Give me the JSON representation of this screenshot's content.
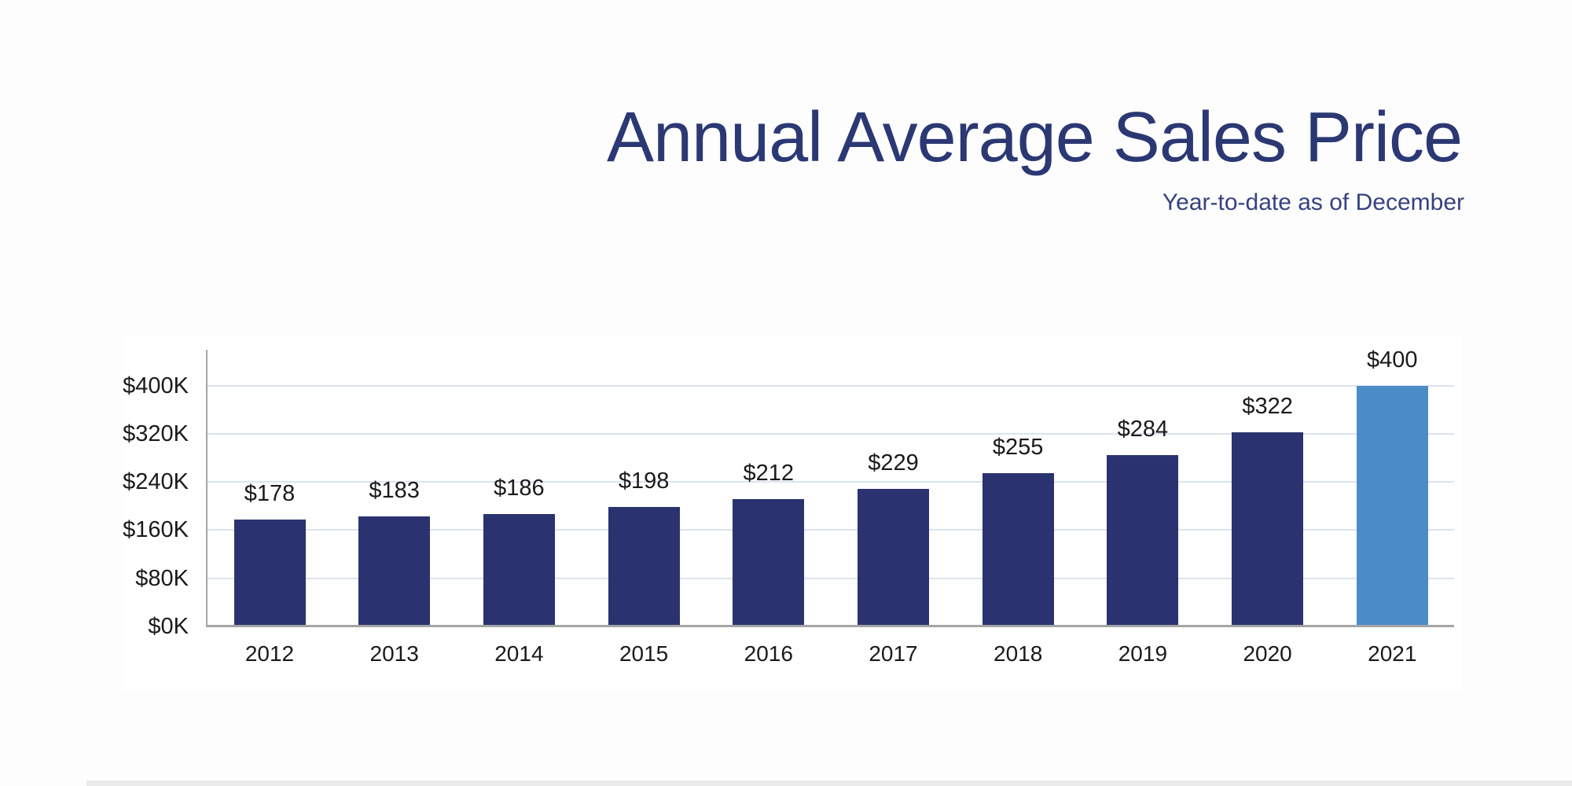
{
  "header": {
    "title": "Annual Average Sales Price",
    "subtitle": "Year-to-date as of December"
  },
  "colors": {
    "title_text": "#2b3873",
    "subtitle_text": "#36427e",
    "bar_default": "#2a336f",
    "bar_highlight": "#4b8cc8",
    "gridline": "#dce2ee",
    "axis_line": "#a5a5a5",
    "label_text": "#1a1a1a",
    "panel_background": "#ffffff",
    "page_background": "#fdfdfd"
  },
  "chart_data": {
    "type": "bar",
    "title": "Annual Average Sales Price",
    "subtitle": "Year-to-date as of December",
    "categories": [
      "2012",
      "2013",
      "2014",
      "2015",
      "2016",
      "2017",
      "2018",
      "2019",
      "2020",
      "2021"
    ],
    "values": [
      178,
      183,
      186,
      198,
      212,
      229,
      255,
      284,
      322,
      400
    ],
    "value_labels": [
      "$178",
      "$183",
      "$186",
      "$198",
      "$212",
      "$229",
      "$255",
      "$284",
      "$322",
      "$400"
    ],
    "values_unit_note": "values shown in thousands of dollars",
    "highlight_category": "2021",
    "xlabel": "",
    "ylabel": "",
    "yticks": [
      "$0K",
      "$80K",
      "$160K",
      "$240K",
      "$320K",
      "$400K"
    ],
    "ytick_values": [
      0,
      80,
      160,
      240,
      320,
      400
    ],
    "ylim": [
      0,
      460
    ],
    "grid": true,
    "legend": false
  }
}
